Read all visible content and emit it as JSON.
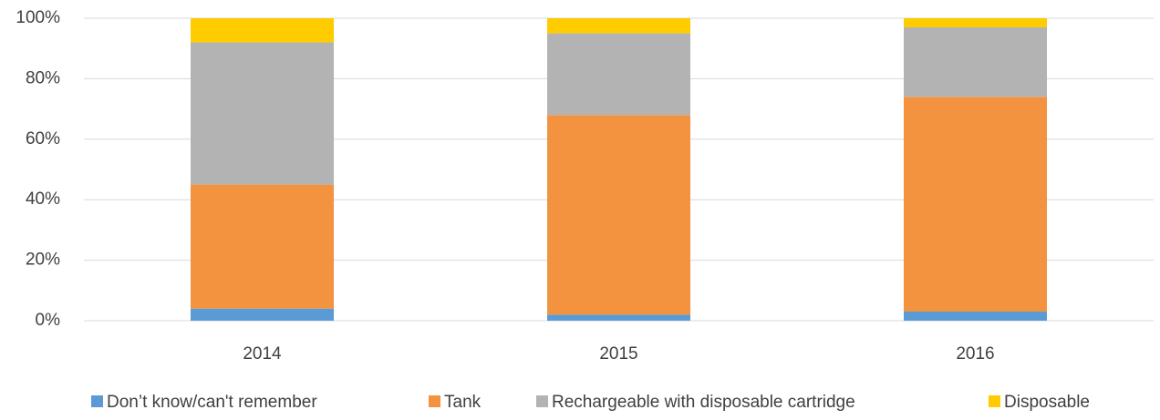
{
  "chart_data": {
    "type": "bar",
    "stacked": true,
    "categories": [
      "2014",
      "2015",
      "2016"
    ],
    "series": [
      {
        "name": "Don’t know/can't remember",
        "color": "#5b9bd5",
        "values": [
          4,
          2,
          3
        ]
      },
      {
        "name": "Tank",
        "color": "#f39340",
        "values": [
          41,
          66,
          71
        ]
      },
      {
        "name": "Rechargeable with disposable cartridge",
        "color": "#b3b3b3",
        "values": [
          47,
          27,
          23
        ]
      },
      {
        "name": "Disposable",
        "color": "#ffcc00",
        "values": [
          8,
          5,
          3
        ]
      }
    ],
    "ylim": [
      0,
      100
    ],
    "yticks": [
      {
        "value": 0,
        "label": "0%"
      },
      {
        "value": 20,
        "label": "20%"
      },
      {
        "value": 40,
        "label": "40%"
      },
      {
        "value": 60,
        "label": "60%"
      },
      {
        "value": 80,
        "label": "80%"
      },
      {
        "value": 100,
        "label": "100%"
      }
    ],
    "grid": true,
    "legend": "bottom"
  }
}
